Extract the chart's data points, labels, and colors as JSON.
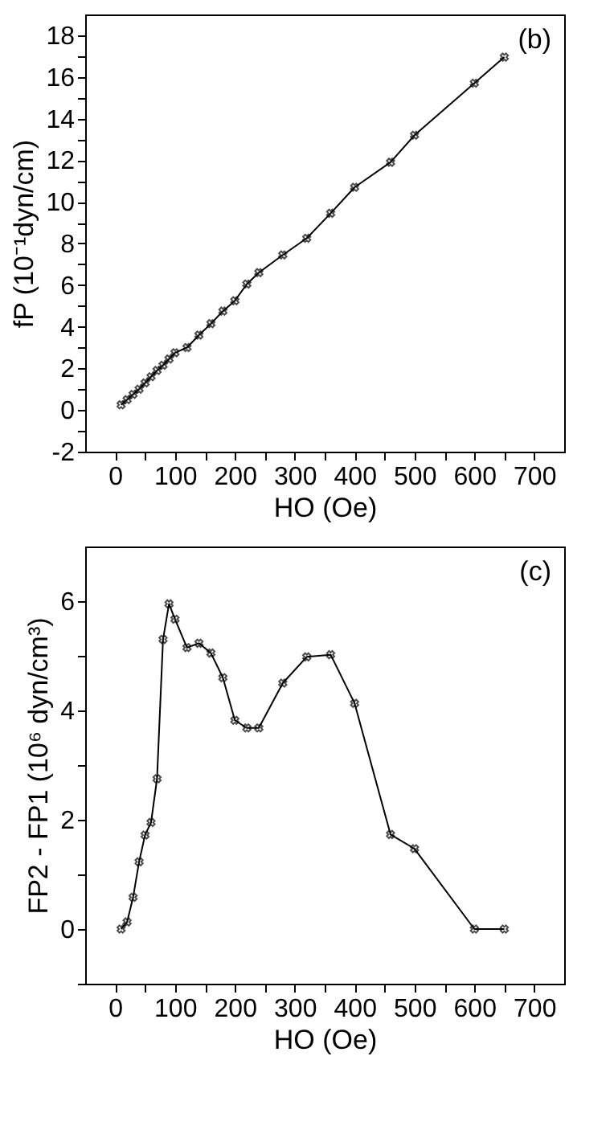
{
  "chart_data": [
    {
      "type": "line",
      "annotations": [
        "(b)"
      ],
      "xlabel": "HO (Oe)",
      "ylabel": "fP (10⁻¹dyn/cm)",
      "x": [
        10,
        20,
        30,
        40,
        50,
        60,
        70,
        80,
        90,
        100,
        120,
        140,
        160,
        180,
        200,
        220,
        240,
        280,
        320,
        360,
        400,
        460,
        500,
        600,
        650
      ],
      "series": [
        {
          "color": "#000000",
          "values": [
            0.25,
            0.5,
            0.75,
            1.0,
            1.3,
            1.6,
            1.9,
            2.15,
            2.45,
            2.75,
            3.0,
            3.6,
            4.15,
            4.75,
            5.25,
            6.05,
            6.6,
            7.45,
            8.25,
            9.45,
            10.7,
            11.9,
            13.2,
            15.7,
            16.95
          ]
        }
      ],
      "xlim": [
        -50,
        750
      ],
      "xticks": [
        0,
        {
          "value": 50,
          "label": null
        },
        100,
        {
          "value": 150,
          "label": null
        },
        200,
        {
          "value": 250,
          "label": null
        },
        300,
        {
          "value": 350,
          "label": null
        },
        400,
        {
          "value": 450,
          "label": null
        },
        500,
        {
          "value": 550,
          "label": null
        },
        600,
        {
          "value": 650,
          "label": null
        },
        700
      ],
      "ylim": [
        -2,
        19
      ],
      "yticks": [
        -2,
        {
          "value": -1,
          "label": null
        },
        0,
        {
          "value": 1,
          "label": null
        },
        2,
        {
          "value": 3,
          "label": null
        },
        4,
        {
          "value": 5,
          "label": null
        },
        6,
        {
          "value": 7,
          "label": null
        },
        8,
        {
          "value": 9,
          "label": null
        },
        10,
        {
          "value": 11,
          "label": null
        },
        12,
        {
          "value": 13,
          "label": null
        },
        14,
        {
          "value": 15,
          "label": null
        },
        16,
        {
          "value": 17,
          "label": null
        },
        18
      ],
      "marker": "cross",
      "line_style": "solid",
      "grid": false
    },
    {
      "type": "line",
      "annotations": [
        "(c)"
      ],
      "xlabel": "HO (Oe)",
      "ylabel": "FP2 - FP1 (10⁶ dyn/cm³)",
      "x": [
        10,
        20,
        30,
        40,
        50,
        60,
        70,
        80,
        90,
        100,
        120,
        140,
        160,
        180,
        200,
        220,
        240,
        280,
        320,
        360,
        400,
        460,
        500,
        600,
        650
      ],
      "series": [
        {
          "color": "#000000",
          "values": [
            0,
            0.13,
            0.58,
            1.23,
            1.72,
            1.95,
            2.75,
            5.3,
            5.95,
            5.67,
            5.15,
            5.23,
            5.05,
            4.6,
            3.82,
            3.68,
            3.68,
            4.5,
            4.98,
            5.02,
            4.13,
            1.73,
            1.47,
            0,
            0
          ]
        }
      ],
      "xlim": [
        -50,
        750
      ],
      "xticks": [
        0,
        {
          "value": 50,
          "label": null
        },
        100,
        {
          "value": 150,
          "label": null
        },
        200,
        {
          "value": 250,
          "label": null
        },
        300,
        {
          "value": 350,
          "label": null
        },
        400,
        {
          "value": 450,
          "label": null
        },
        500,
        {
          "value": 550,
          "label": null
        },
        600,
        {
          "value": 650,
          "label": null
        },
        700
      ],
      "ylim": [
        -1,
        7
      ],
      "yticks": [
        {
          "value": -1,
          "label": null
        },
        0,
        {
          "value": 1,
          "label": null
        },
        2,
        {
          "value": 3,
          "label": null
        },
        4,
        {
          "value": 5,
          "label": null
        },
        6
      ],
      "marker": "cross",
      "line_style": "solid",
      "grid": false
    }
  ]
}
